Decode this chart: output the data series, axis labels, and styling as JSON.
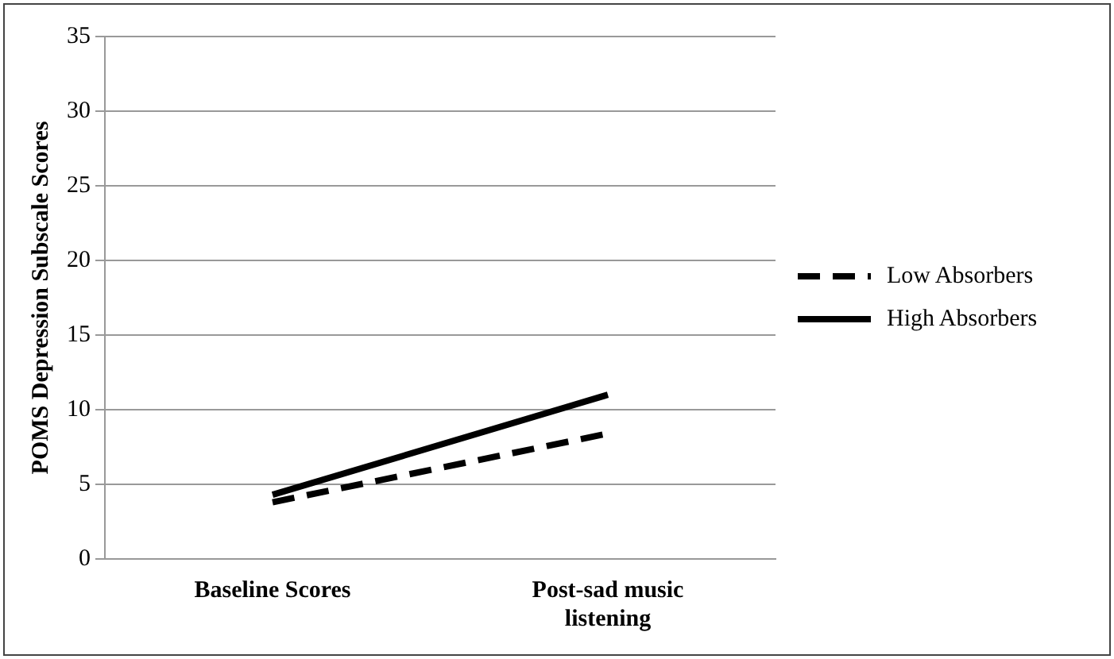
{
  "chart_data": {
    "type": "line",
    "ylabel": "POMS Depression Subscale Scores",
    "categories": [
      "Baseline Scores",
      "Post-sad music listening"
    ],
    "series": [
      {
        "name": "Low Absorbers",
        "color": "#000000",
        "values": [
          3.8,
          8.4
        ],
        "line_style": "dashed"
      },
      {
        "name": "High Absorbers",
        "color": "#000000",
        "values": [
          4.3,
          11.0
        ],
        "line_style": "solid"
      }
    ],
    "ylim": [
      0,
      35
    ],
    "yticks": [
      0,
      5,
      10,
      15,
      20,
      25,
      30,
      35
    ],
    "grid": "y",
    "legend": "right",
    "marker": "none"
  }
}
